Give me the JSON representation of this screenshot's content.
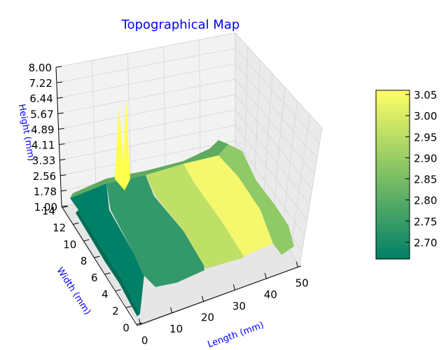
{
  "chart_data": {
    "type": "surface",
    "title": "Topographical Map",
    "xlabel": "Length (mm)",
    "ylabel": "Width (mm)",
    "zlabel": "Height (mm)",
    "x_ticks": [
      "0",
      "10",
      "20",
      "30",
      "40",
      "50"
    ],
    "y_ticks": [
      "0",
      "2",
      "4",
      "6",
      "8",
      "10",
      "12",
      "14"
    ],
    "z_ticks": [
      "1.00",
      "1.78",
      "2.56",
      "3.33",
      "4.11",
      "4.89",
      "5.67",
      "6.44",
      "7.22",
      "8.00"
    ],
    "xlim": [
      0,
      50
    ],
    "ylim": [
      0,
      14
    ],
    "zlim": [
      1.0,
      8.0
    ],
    "grid": true,
    "colormap": "summer",
    "colorbar": {
      "ticks": [
        "2.70",
        "2.75",
        "2.80",
        "2.85",
        "2.90",
        "2.95",
        "3.00",
        "3.05"
      ],
      "range": [
        2.66,
        3.06
      ],
      "color_low": "#008066",
      "color_high": "#ffff66"
    },
    "surface_bands": [
      {
        "x_range": [
          0,
          10
        ],
        "height": 2.7
      },
      {
        "x_range": [
          10,
          20
        ],
        "height": 2.78
      },
      {
        "x_range": [
          20,
          30
        ],
        "height": 2.93
      },
      {
        "x_range": [
          30,
          40
        ],
        "height": 3.04
      },
      {
        "x_range": [
          40,
          50
        ],
        "height": 2.86
      }
    ],
    "peaks": [
      {
        "x": 8,
        "y": 13,
        "height": 7.4
      },
      {
        "x": 10,
        "y": 13,
        "height": 7.5
      }
    ]
  }
}
